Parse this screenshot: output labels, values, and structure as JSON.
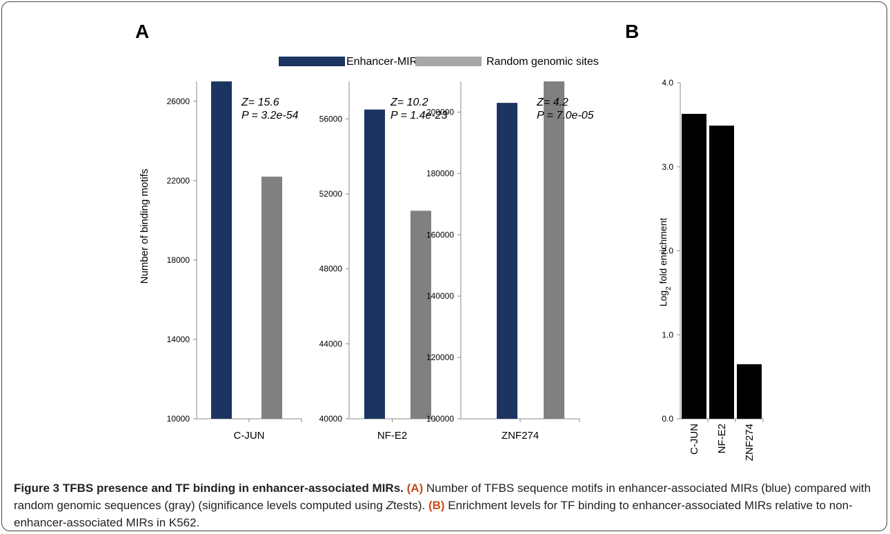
{
  "panel_a_label": "A",
  "panel_b_label": "B",
  "legend": [
    {
      "label": "Enhancer-MIRs",
      "color": "#1b3560"
    },
    {
      "label": "Random genomic sites",
      "color": "#a6a6a6"
    }
  ],
  "colors": {
    "enhancer": "#1b3560",
    "random": "#808080",
    "enrichment": "#000000"
  },
  "chart_data": [
    {
      "type": "bar",
      "category": "C-JUN",
      "ylabel": "Number of binding motifs",
      "ylim": [
        10000,
        27000
      ],
      "yticks": [
        "10000",
        "14000",
        "18000",
        "22000",
        "26000"
      ],
      "series": [
        {
          "name": "Enhancer-MIRs",
          "values": [
            27000
          ]
        },
        {
          "name": "Random genomic sites",
          "values": [
            22200
          ]
        }
      ],
      "annotation": [
        "Z= 15.6",
        "P = 3.2e-54"
      ]
    },
    {
      "type": "bar",
      "category": "NF-E2",
      "ylabel": "",
      "ylim": [
        40000,
        58000
      ],
      "yticks": [
        "40000",
        "44000",
        "48000",
        "52000",
        "56000"
      ],
      "series": [
        {
          "name": "Enhancer-MIRs",
          "values": [
            56500
          ]
        },
        {
          "name": "Random genomic sites",
          "values": [
            51100
          ]
        }
      ],
      "annotation": [
        "Z= 10.2",
        "P = 1.4e-23"
      ]
    },
    {
      "type": "bar",
      "category": "ZNF274",
      "ylabel": "",
      "ylim": [
        100000,
        210000
      ],
      "yticks": [
        "100000",
        "120000",
        "140000",
        "160000",
        "180000",
        "200000"
      ],
      "series": [
        {
          "name": "Enhancer-MIRs",
          "values": [
            203000
          ]
        },
        {
          "name": "Random genomic sites",
          "values": [
            210000
          ]
        }
      ],
      "annotation": [
        "Z= 4.2",
        "P = 7.0e-05"
      ]
    },
    {
      "type": "bar",
      "categories": [
        "C-JUN",
        "NF-E2",
        "ZNF274"
      ],
      "values": [
        3.63,
        3.49,
        0.65
      ],
      "ylabel": "Log2 fold enrichment",
      "ylim": [
        0,
        4
      ],
      "yticks": [
        "0.0",
        "1.0",
        "2.0",
        "3.0",
        "4.0"
      ]
    }
  ],
  "caption": {
    "title": "Figure 3 TFBS presence and TF binding in enhancer-associated MIRs.",
    "a_tag": "(A)",
    "a_text": " Number of TFBS sequence motifs in enhancer-associated MIRs (blue) compared with random genomic sequences (gray) (significance levels computed using ",
    "a_z": "Z",
    "a_text2": "tests). ",
    "b_tag": "(B)",
    "b_text": " Enrichment levels for TF binding to enhancer-associated MIRs relative to non-enhancer-associated MIRs in K562."
  }
}
